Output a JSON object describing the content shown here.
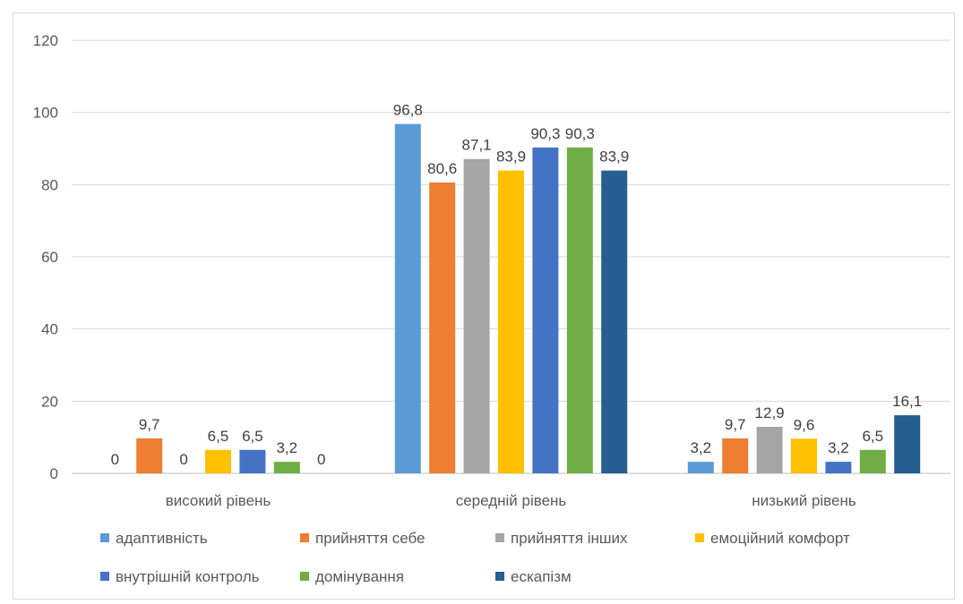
{
  "chart_data": {
    "type": "bar",
    "title": "",
    "xlabel": "",
    "ylabel": "",
    "ylim": [
      0,
      120
    ],
    "yticks": [
      0,
      20,
      40,
      60,
      80,
      100,
      120
    ],
    "grid": true,
    "legend_position": "bottom",
    "categories": [
      "високий рівень",
      "середній рівень",
      "низький рівень"
    ],
    "series": [
      {
        "name": "адаптивність",
        "color": "#5B9BD5",
        "values": [
          0,
          96.8,
          3.2
        ],
        "labels": [
          "0",
          "96,8",
          "3,2"
        ]
      },
      {
        "name": "прийняття себе",
        "color": "#ED7D31",
        "values": [
          9.7,
          80.6,
          9.7
        ],
        "labels": [
          "9,7",
          "80,6",
          "9,7"
        ]
      },
      {
        "name": "прийняття інших",
        "color": "#A5A5A5",
        "values": [
          0,
          87.1,
          12.9
        ],
        "labels": [
          "0",
          "87,1",
          "12,9"
        ]
      },
      {
        "name": "емоційний комфорт",
        "color": "#FFC000",
        "values": [
          6.5,
          83.9,
          9.6
        ],
        "labels": [
          "6,5",
          "83,9",
          "9,6"
        ]
      },
      {
        "name": "внутрішній контроль",
        "color": "#4472C4",
        "values": [
          6.5,
          90.3,
          3.2
        ],
        "labels": [
          "6,5",
          "90,3",
          "3,2"
        ]
      },
      {
        "name": "домінування",
        "color": "#70AD47",
        "values": [
          3.2,
          90.3,
          6.5
        ],
        "labels": [
          "3,2",
          "90,3",
          "6,5"
        ]
      },
      {
        "name": "ескапізм",
        "color": "#255E91",
        "values": [
          0,
          83.9,
          16.1
        ],
        "labels": [
          "0",
          "83,9",
          "16,1"
        ]
      }
    ]
  }
}
